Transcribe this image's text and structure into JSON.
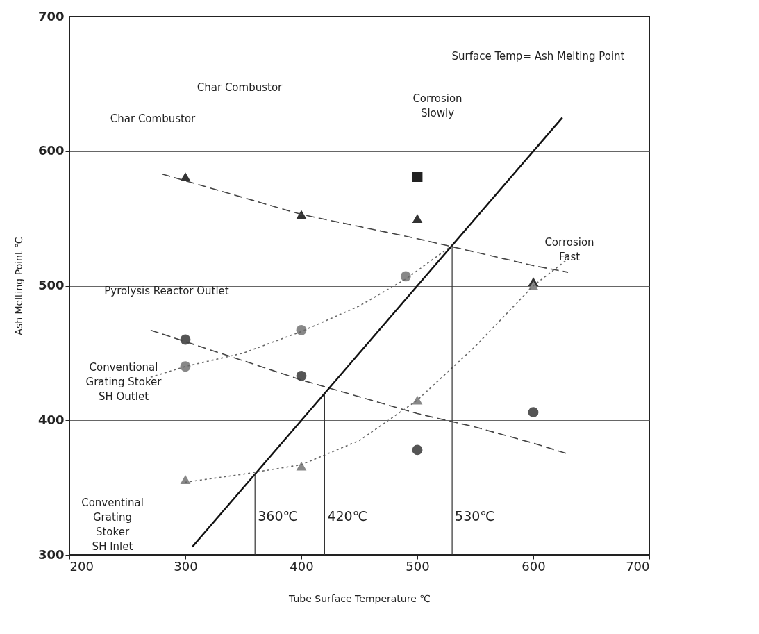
{
  "chart_data": {
    "type": "scatter",
    "xlabel": "Tube Surface Temperature ℃",
    "ylabel": "Ash Melting Point ℃",
    "xlim": [
      200,
      700
    ],
    "ylim": [
      300,
      700
    ],
    "xticks": [
      200,
      300,
      400,
      500,
      600,
      700
    ],
    "yticks": [
      300,
      400,
      500,
      600,
      700
    ],
    "grid": "y",
    "series": [
      {
        "marker": "triangle",
        "color": "#333333",
        "x": [
          300,
          400,
          500,
          600
        ],
        "values": [
          581,
          553,
          550,
          503
        ]
      },
      {
        "marker": "square",
        "color": "#222222",
        "x": [
          500
        ],
        "values": [
          581
        ]
      },
      {
        "marker": "circle",
        "color": "#888888",
        "x": [
          300,
          400,
          490
        ],
        "values": [
          440,
          467,
          507
        ]
      },
      {
        "marker": "triangle",
        "color": "#888888",
        "x": [
          300,
          400,
          500,
          600
        ],
        "values": [
          356,
          366,
          415,
          500
        ]
      },
      {
        "marker": "circle",
        "color": "#555555",
        "x": [
          300,
          400,
          500,
          600
        ],
        "values": [
          460,
          433,
          378,
          406
        ]
      },
      {
        "type": "line",
        "line_style": "dashed",
        "color": "#444444",
        "x": [
          280,
          400,
          500,
          600,
          630
        ],
        "values": [
          583,
          553,
          535,
          515,
          510
        ]
      },
      {
        "type": "line",
        "line_style": "dashed",
        "color": "#444444",
        "x": [
          270,
          400,
          500,
          550,
          600,
          630
        ],
        "values": [
          467,
          430,
          405,
          395,
          383,
          375
        ]
      },
      {
        "type": "line",
        "line_style": "dotted",
        "color": "#666666",
        "x": [
          270,
          300,
          350,
          400,
          450,
          490,
          530
        ],
        "values": [
          432,
          440,
          450,
          466,
          485,
          505,
          530
        ]
      },
      {
        "type": "line",
        "line_style": "dotted",
        "color": "#666666",
        "x": [
          300,
          350,
          400,
          450,
          500,
          550,
          600,
          630
        ],
        "values": [
          354,
          360,
          367,
          385,
          415,
          455,
          500,
          520
        ]
      },
      {
        "type": "line",
        "line_style": "solid",
        "color": "#111111",
        "x": [
          306,
          625
        ],
        "values": [
          306,
          625
        ]
      }
    ],
    "ref_lines": [
      {
        "axis": "x",
        "value": 360,
        "label": "360℃"
      },
      {
        "axis": "x",
        "value": 420,
        "label": "420℃"
      },
      {
        "axis": "x",
        "value": 530,
        "label": "530℃"
      }
    ],
    "annotations": [
      "Surface Temp= Ash Melting Point",
      "Char Combustor",
      "Corrosion\nSlowly",
      "Char Combustor",
      "Corrosion\nFast",
      "Pyrolysis Reactor Outlet",
      "Conventional\nGrating Stoker\nSH Outlet",
      "Conventinal\nGrating\nStoker\nSH Inlet"
    ]
  }
}
